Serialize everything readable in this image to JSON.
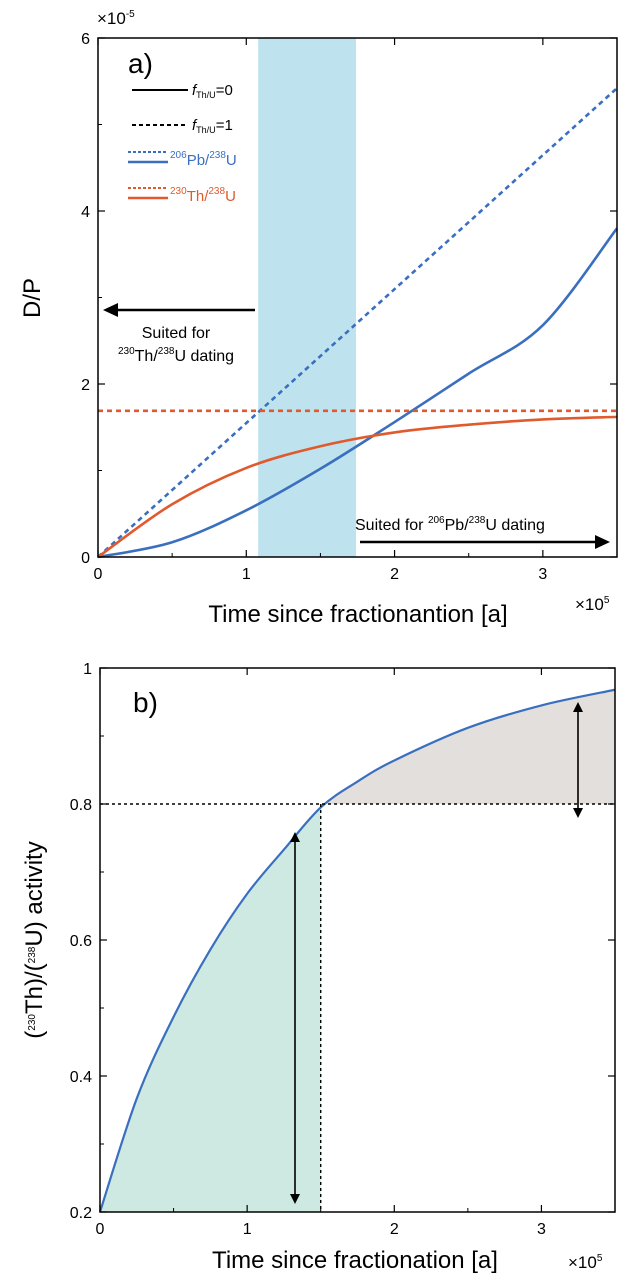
{
  "colors": {
    "blue": "#3a6fc0",
    "red": "#e05a2e",
    "band": "#bfe3ee",
    "green_fill": "#cde9e2",
    "gray_fill": "#e3dfdc"
  },
  "chart_data": [
    {
      "type": "line",
      "panel_label": "a)",
      "xlabel": "Time since fractionantion [a]",
      "ylabel": "D/P",
      "x_multiplier": "×10",
      "x_multiplier_exp": "5",
      "y_multiplier": "×10",
      "y_multiplier_exp": "-5",
      "x_scale": 100000,
      "y_scale": 1e-05,
      "xlim": [
        0,
        350000
      ],
      "ylim": [
        0,
        6e-05
      ],
      "xticks": [
        "0",
        "1",
        "2",
        "3"
      ],
      "yticks": [
        "0",
        "2",
        "4",
        "6"
      ],
      "shaded_band": [
        108000,
        174000
      ],
      "legend": [
        {
          "prefix": "",
          "label": "=0",
          "style": "solid",
          "color": "black",
          "kind": "f",
          "sub": "Th/U"
        },
        {
          "prefix": "",
          "label": "=1",
          "style": "dashed",
          "color": "black",
          "kind": "f",
          "sub": "Th/U"
        },
        {
          "sup1": "206",
          "base1": "Pb/",
          "sup2": "238",
          "base2": "U",
          "style": "blue",
          "color": "#3a6fc0"
        },
        {
          "sup1": "230",
          "base1": "Th/",
          "sup2": "238",
          "base2": "U",
          "style": "red",
          "color": "#e05a2e"
        }
      ],
      "annotations": {
        "left_line1": "Suited for",
        "left_sup1": "230",
        "left_mid": "Th/",
        "left_sup2": "238",
        "left_end": "U dating",
        "right_pre": "Suited for ",
        "right_sup1": "206",
        "right_mid": "Pb/",
        "right_sup2": "238",
        "right_end": "U dating"
      },
      "series": [
        {
          "name": "206Pb/238U, fTh/U=0",
          "color": "#3a6fc0",
          "dash": false,
          "x": [
            0,
            50000,
            100000,
            150000,
            200000,
            250000,
            300000,
            350000
          ],
          "y": [
            0,
            1.7e-06,
            5.4e-06,
            1.02e-05,
            1.56e-05,
            2.12e-05,
            2.68e-05,
            3.8e-05
          ]
        },
        {
          "name": "206Pb/238U, fTh/U=1",
          "color": "#3a6fc0",
          "dash": true,
          "x": [
            0,
            350000
          ],
          "y": [
            0,
            5.42e-05
          ]
        },
        {
          "name": "230Th/238U, fTh/U=0",
          "color": "#e05a2e",
          "dash": false,
          "x": [
            0,
            50000,
            100000,
            150000,
            200000,
            250000,
            300000,
            350000
          ],
          "y": [
            0,
            6.1e-06,
            1.03e-05,
            1.28e-05,
            1.44e-05,
            1.53e-05,
            1.59e-05,
            1.62e-05
          ]
        },
        {
          "name": "230Th/238U, fTh/U=1",
          "color": "#e05a2e",
          "dash": true,
          "x": [
            0,
            350000
          ],
          "y": [
            1.69e-05,
            1.69e-05
          ]
        }
      ]
    },
    {
      "type": "area",
      "panel_label": "b)",
      "xlabel": "Time since fractionation [a]",
      "ylabel_pre": "(",
      "ylabel_sup1": "230",
      "ylabel_mid": "Th)/(",
      "ylabel_sup2": "238",
      "ylabel_end": "U) activity",
      "x_multiplier": "×10",
      "x_multiplier_exp": "5",
      "x_scale": 100000,
      "xlim": [
        0,
        350000
      ],
      "ylim": [
        0.2,
        1.0
      ],
      "xticks": [
        "0",
        "1",
        "2",
        "3"
      ],
      "yticks": [
        "0.2",
        "0.4",
        "0.6",
        "0.8",
        "1"
      ],
      "threshold_y": 0.8,
      "threshold_x": 150000,
      "series": [
        {
          "name": "activity",
          "color": "#3a6fc0",
          "x": [
            0,
            25000,
            50000,
            75000,
            100000,
            125000,
            150000,
            175000,
            200000,
            250000,
            300000,
            350000
          ],
          "y": [
            0.2,
            0.367,
            0.487,
            0.586,
            0.668,
            0.733,
            0.795,
            0.833,
            0.864,
            0.912,
            0.945,
            0.968
          ]
        }
      ]
    }
  ]
}
